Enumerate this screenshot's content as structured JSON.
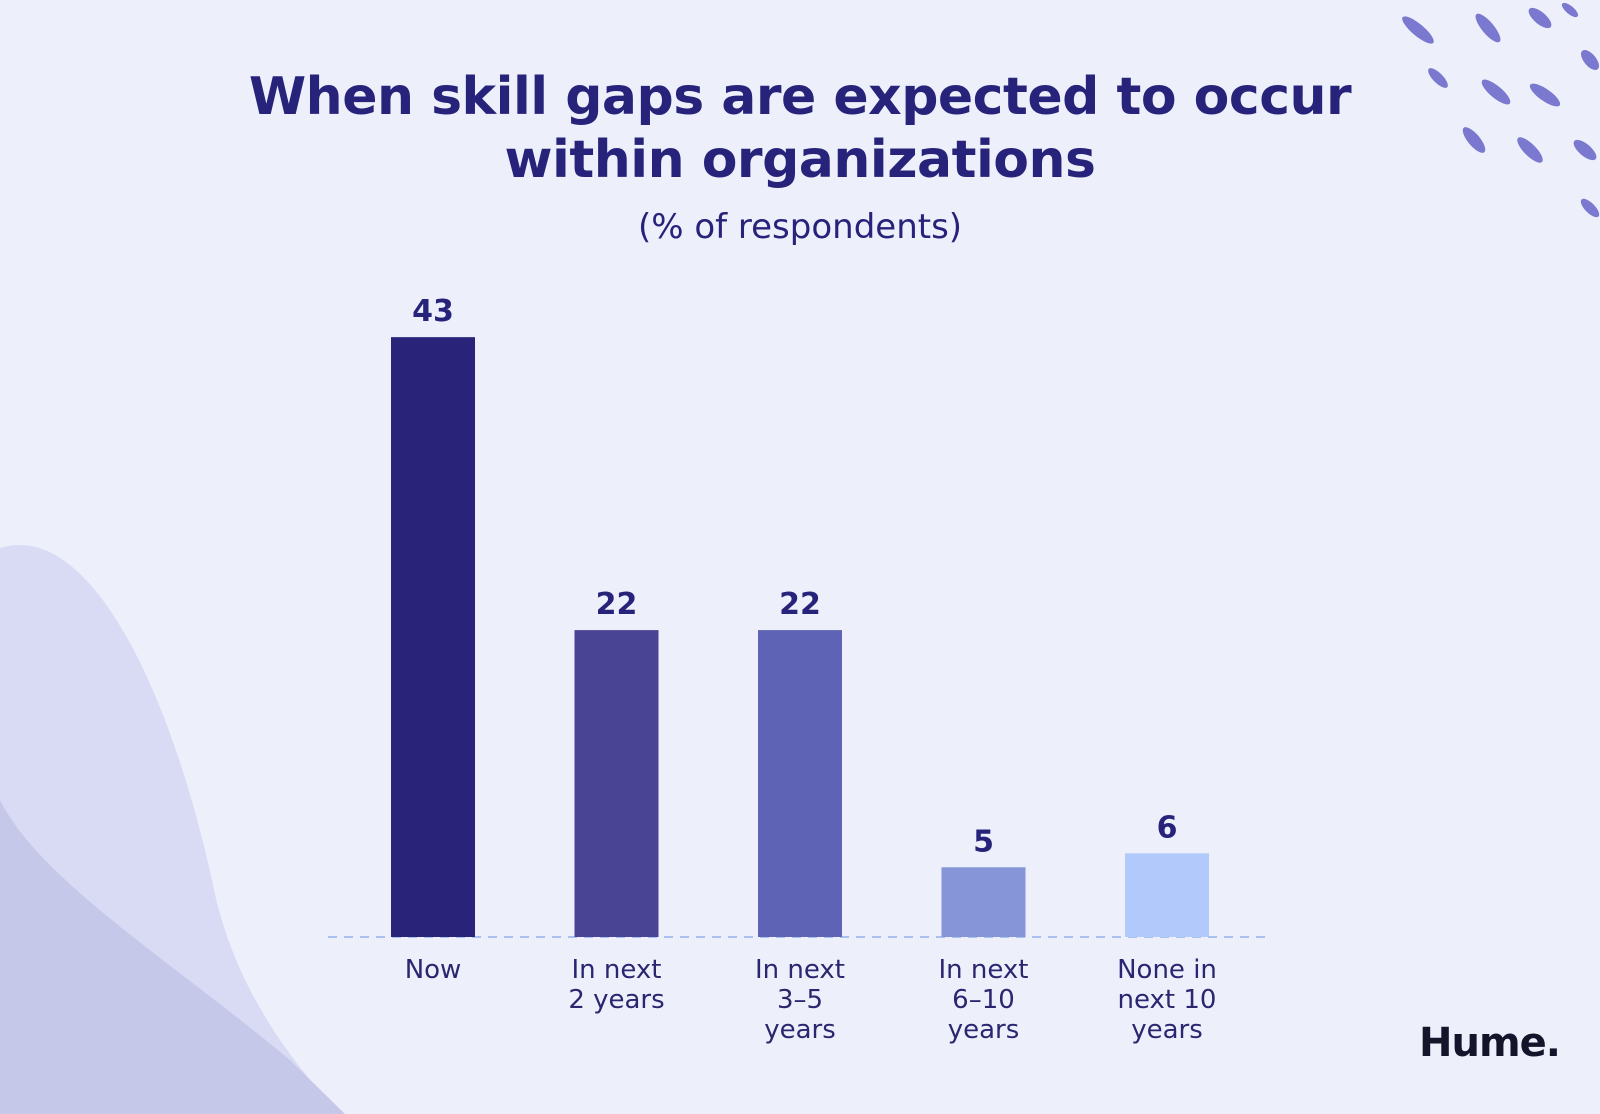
{
  "chart_data": {
    "type": "bar",
    "title": "When skill gaps are expected to occur within organizations",
    "subtitle": "(% of respondents)",
    "categories": [
      "Now",
      "In next\n2 years",
      "In next\n3–5\nyears",
      "In next\n6–10\nyears",
      "None in\nnext 10\nyears"
    ],
    "values": [
      43,
      22,
      22,
      5,
      6
    ],
    "colors": [
      "#29237a",
      "#4a4494",
      "#5e63b6",
      "#8595d8",
      "#b2c9fb"
    ],
    "ylim": [
      0,
      45
    ],
    "grid": false,
    "legend": "none"
  },
  "brand": {
    "logo_text": "Hume."
  },
  "colors": {
    "background": "#edf0fb",
    "title": "#28237a",
    "baseline": "#a9c1f0",
    "blob_light": "#d9dbf4",
    "blob_dark": "#c6c8ea",
    "accent_marks": "#7b78cf"
  }
}
